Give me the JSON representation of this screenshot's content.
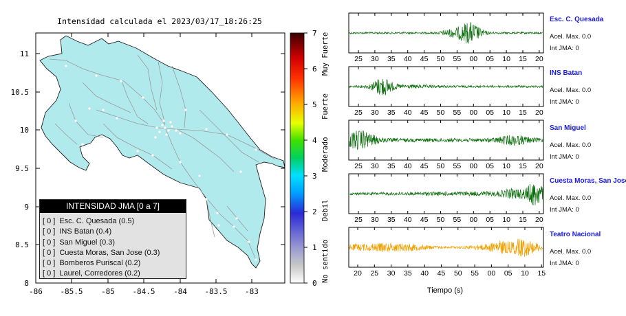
{
  "map": {
    "title": "Intensidad calculada el 2023/03/17_18:26:25",
    "lat_ticks": [
      "11",
      "10.5",
      "10",
      "9.5",
      "9",
      "8.5",
      "8"
    ],
    "lon_ticks": [
      "-86",
      "-85.5",
      "-85",
      "-84.5",
      "-84",
      "-83.5",
      "-83"
    ],
    "land_color": "#b0eaed",
    "road_color": "#9a9a9a",
    "station_color": "#ffffff"
  },
  "legend": {
    "title": "INTENSIDAD JMA [0 a 7]",
    "items": [
      {
        "level": "[ 0 ]",
        "label": "Esc. C. Quesada (0.5)"
      },
      {
        "level": "[ 0 ]",
        "label": "INS Batan (0.4)"
      },
      {
        "level": "[ 0 ]",
        "label": "San Miguel (0.3)"
      },
      {
        "level": "[ 0 ]",
        "label": "Cuesta Moras, San Jose (0.3)"
      },
      {
        "level": "[ 0 ]",
        "label": "Bomberos Puriscal (0.2)"
      },
      {
        "level": "[ 0 ]",
        "label": "Laurel, Corredores (0.2)"
      }
    ]
  },
  "colorbar": {
    "ticks": [
      "0",
      "1",
      "2",
      "3",
      "4",
      "5",
      "6",
      "7"
    ],
    "labels": [
      "No sentido",
      "Debil",
      "Moderado",
      "Fuerte",
      "Muy Fuerte"
    ]
  },
  "traces": {
    "xlabel": "Tiempo (s)",
    "stations": [
      {
        "name": "Esc. C. Quesada",
        "acel": "Acel. Max. 0.0",
        "int": "Int JMA: 0",
        "ticks": [
          "25",
          "30",
          "35",
          "40",
          "45",
          "50",
          "55",
          "00",
          "05",
          "10",
          "15",
          "20"
        ],
        "color": "#0d6e0d"
      },
      {
        "name": "INS Batan",
        "acel": "Acel. Max. 0.0",
        "int": "Int JMA: 0",
        "ticks": [
          "25",
          "30",
          "35",
          "40",
          "45",
          "50",
          "55",
          "00",
          "05",
          "10",
          "15",
          "20"
        ],
        "color": "#0d6e0d"
      },
      {
        "name": "San Miguel",
        "acel": "Acel. Max. 0.0",
        "int": "Int JMA: 0",
        "ticks": [
          "25",
          "30",
          "35",
          "40",
          "45",
          "50",
          "55",
          "00",
          "05",
          "10",
          "15",
          "20"
        ],
        "color": "#0d6e0d"
      },
      {
        "name": "Cuesta Moras, San Jose",
        "acel": "Acel. Max. 0.0",
        "int": "Int JMA: 0",
        "ticks": [
          "25",
          "30",
          "35",
          "40",
          "45",
          "50",
          "55",
          "00",
          "05",
          "10",
          "15",
          "20"
        ],
        "color": "#0d6e0d"
      },
      {
        "name": "Teatro Nacional",
        "acel": "Acel. Max. 0.0",
        "int": "Int JMA: 0",
        "ticks": [
          "20",
          "25",
          "30",
          "35",
          "40",
          "45",
          "50",
          "55",
          "00",
          "05",
          "10",
          "15"
        ],
        "color": "#f0a000"
      }
    ]
  }
}
